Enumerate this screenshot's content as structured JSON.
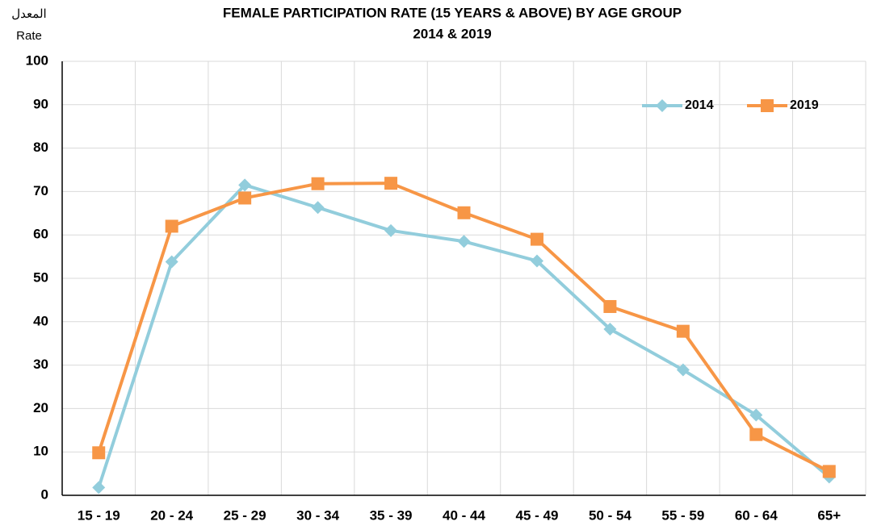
{
  "chart_data": {
    "type": "line",
    "title": "FEMALE PARTICIPATION RATE (15 YEARS & ABOVE) BY AGE GROUP",
    "subtitle": "2014 & 2019",
    "y_label_arabic": "المعدل",
    "y_label": "Rate",
    "categories": [
      "15 - 19",
      "20 - 24",
      "25 - 29",
      "30 - 34",
      "35 - 39",
      "40 - 44",
      "45 - 49",
      "50 - 54",
      "55 - 59",
      "60 - 64",
      "65+"
    ],
    "series": [
      {
        "name": "2014",
        "color": "#92cddc",
        "marker": "diamond",
        "values": [
          1.8,
          53.8,
          71.5,
          66.3,
          61,
          58.5,
          54,
          38.3,
          28.9,
          18.5,
          4.2
        ]
      },
      {
        "name": "2019",
        "color": "#f79646",
        "marker": "square",
        "values": [
          9.8,
          62,
          68.5,
          71.8,
          71.9,
          65.1,
          59,
          43.5,
          37.8,
          14,
          5.5
        ]
      }
    ],
    "ylim": [
      0,
      100
    ],
    "yticks": [
      0,
      10,
      20,
      30,
      40,
      50,
      60,
      70,
      80,
      90,
      100
    ],
    "grid": true,
    "legend": "top-right"
  }
}
